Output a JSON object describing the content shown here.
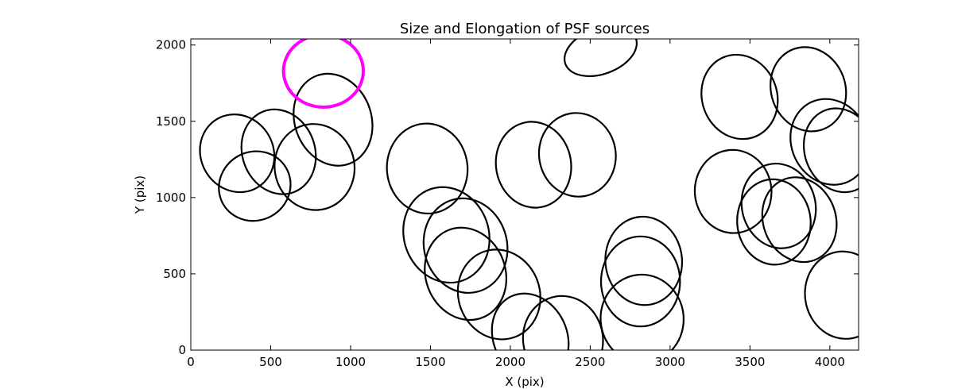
{
  "chart_data": {
    "type": "scatter",
    "title": "Size and Elongation of PSF sources",
    "xlabel": "X (pix)",
    "ylabel": "Y (pix)",
    "xlim": [
      0,
      4180
    ],
    "ylim": [
      0,
      2040
    ],
    "xticks": [
      0,
      500,
      1000,
      1500,
      2000,
      2500,
      3000,
      3500,
      4000
    ],
    "yticks": [
      0,
      500,
      1000,
      1500,
      2000
    ],
    "grid": false,
    "legend": "none",
    "colors": {
      "default": "#000000",
      "highlight": "#ff00ff"
    },
    "marker": "ellipse",
    "ellipses": [
      {
        "x": 290,
        "y": 1290,
        "w": 455,
        "h": 520,
        "angle": 30
      },
      {
        "x": 400,
        "y": 1075,
        "w": 455,
        "h": 450,
        "angle": 30
      },
      {
        "x": 550,
        "y": 1300,
        "w": 455,
        "h": 565,
        "angle": 20
      },
      {
        "x": 775,
        "y": 1200,
        "w": 500,
        "h": 565,
        "angle": 10
      },
      {
        "x": 890,
        "y": 1510,
        "w": 480,
        "h": 615,
        "angle": 20
      },
      {
        "x": 830,
        "y": 1830,
        "w": 500,
        "h": 475,
        "angle": 0,
        "highlight": true
      },
      {
        "x": 1480,
        "y": 1190,
        "w": 505,
        "h": 590,
        "angle": 5
      },
      {
        "x": 1600,
        "y": 755,
        "w": 530,
        "h": 635,
        "angle": 20
      },
      {
        "x": 1720,
        "y": 685,
        "w": 520,
        "h": 625,
        "angle": 15
      },
      {
        "x": 1720,
        "y": 500,
        "w": 500,
        "h": 615,
        "angle": 20
      },
      {
        "x": 1930,
        "y": 365,
        "w": 510,
        "h": 595,
        "angle": 20
      },
      {
        "x": 2145,
        "y": 1215,
        "w": 470,
        "h": 565,
        "angle": 10
      },
      {
        "x": 2420,
        "y": 1280,
        "w": 480,
        "h": 550,
        "angle": 10
      },
      {
        "x": 2125,
        "y": 85,
        "w": 460,
        "h": 590,
        "angle": 25
      },
      {
        "x": 2330,
        "y": 70,
        "w": 500,
        "h": 570,
        "angle": 10
      },
      {
        "x": 2565,
        "y": 1960,
        "w": 470,
        "h": 300,
        "angle": 20
      },
      {
        "x": 2835,
        "y": 585,
        "w": 480,
        "h": 580,
        "angle": 5
      },
      {
        "x": 2815,
        "y": 450,
        "w": 495,
        "h": 590,
        "angle": 0
      },
      {
        "x": 2825,
        "y": 205,
        "w": 520,
        "h": 580,
        "angle": 5
      },
      {
        "x": 3435,
        "y": 1660,
        "w": 470,
        "h": 560,
        "angle": 20
      },
      {
        "x": 3395,
        "y": 1040,
        "w": 480,
        "h": 545,
        "angle": 5
      },
      {
        "x": 3680,
        "y": 945,
        "w": 460,
        "h": 560,
        "angle": 15
      },
      {
        "x": 3650,
        "y": 840,
        "w": 460,
        "h": 560,
        "angle": 5
      },
      {
        "x": 3810,
        "y": 855,
        "w": 455,
        "h": 565,
        "angle": 20
      },
      {
        "x": 3865,
        "y": 1710,
        "w": 465,
        "h": 560,
        "angle": 20
      },
      {
        "x": 4000,
        "y": 1365,
        "w": 480,
        "h": 575,
        "angle": 25
      },
      {
        "x": 4065,
        "y": 1310,
        "w": 445,
        "h": 560,
        "angle": 20
      },
      {
        "x": 4090,
        "y": 360,
        "w": 490,
        "h": 575,
        "angle": 10
      }
    ]
  }
}
